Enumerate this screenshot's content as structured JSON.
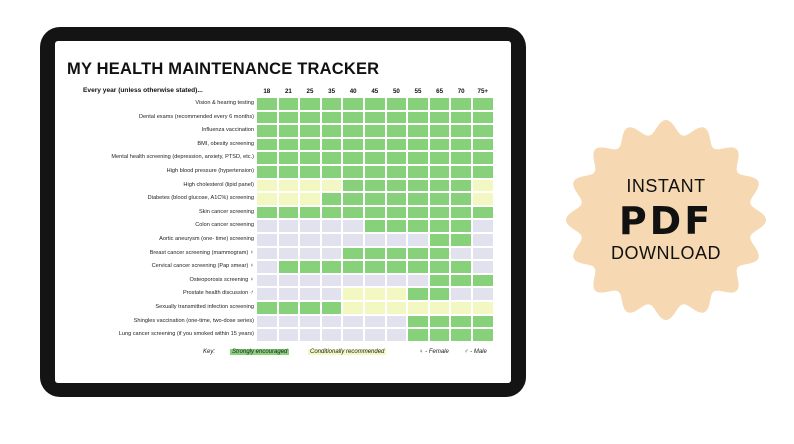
{
  "tracker": {
    "title": "MY HEALTH MAINTENANCE TRACKER",
    "subtitle": "Every year (unless otherwise stated)...",
    "ages": [
      "18",
      "21",
      "25",
      "35",
      "40",
      "45",
      "50",
      "55",
      "65",
      "70",
      "75+"
    ],
    "rows": [
      {
        "label": "Vision & hearing testing",
        "cells": "ggggggggggg"
      },
      {
        "label": "Dental exams (recommended every 6 months)",
        "cells": "ggggggggggg"
      },
      {
        "label": "Influenza vaccination",
        "cells": "ggggggggggg"
      },
      {
        "label": "BMI, obesity screening",
        "cells": "ggggggggggg"
      },
      {
        "label": "Mental health screening (depression, anxiety, PTSD, etc.)",
        "cells": "ggggggggggg"
      },
      {
        "label": "High blood pressure (hypertension)",
        "cells": "ggggggggggg"
      },
      {
        "label": "High cholesterol (lipid panel)",
        "cells": "yyyyggggggy"
      },
      {
        "label": "Diabetes (blood glucose, A1C%) screening",
        "cells": "yyygggggggy"
      },
      {
        "label": "Skin cancer screening",
        "cells": "ggggggggggg"
      },
      {
        "label": "Colon cancer screening",
        "cells": "bbbbbgggggb"
      },
      {
        "label": "Aortic aneurysm (one- time) screening",
        "cells": "bbbbbbbbggb"
      },
      {
        "label": "Breast cancer screening (mammogram)  ♀",
        "cells": "bbbbgggggbb"
      },
      {
        "label": "Cervical cancer screening (Pap smear) ♀",
        "cells": "bgggggggggb"
      },
      {
        "label": "Osteoporosis screening ♀",
        "cells": "bbbbbbbbggg"
      },
      {
        "label": "Prostate  health discussion ♂",
        "cells": "bbbbyyyggbb"
      },
      {
        "label": "Sexually transmitted infection screening",
        "cells": "ggggyyyyyyy"
      },
      {
        "label": "Shingles vaccination  (one-time, two-dose series)",
        "cells": "bbbbbbbgggg"
      },
      {
        "label": "Lung cancer screening (if you smoked within 15 years)",
        "cells": "bbbbbbbgggg"
      }
    ],
    "key": {
      "label": "Key:",
      "strong": "Strongly encouraged",
      "conditional": "Conditionally recommended",
      "female": "♀ - Female",
      "male": "♂ - Male"
    },
    "colors": {
      "strong": "#86d17a",
      "conditional": "#f3f8c3",
      "not_applicable": "#e1e2ee"
    }
  },
  "badge": {
    "line1": "INSTANT",
    "line2": "PDF",
    "line3": "DOWNLOAD",
    "color": "#f6d9b2"
  }
}
